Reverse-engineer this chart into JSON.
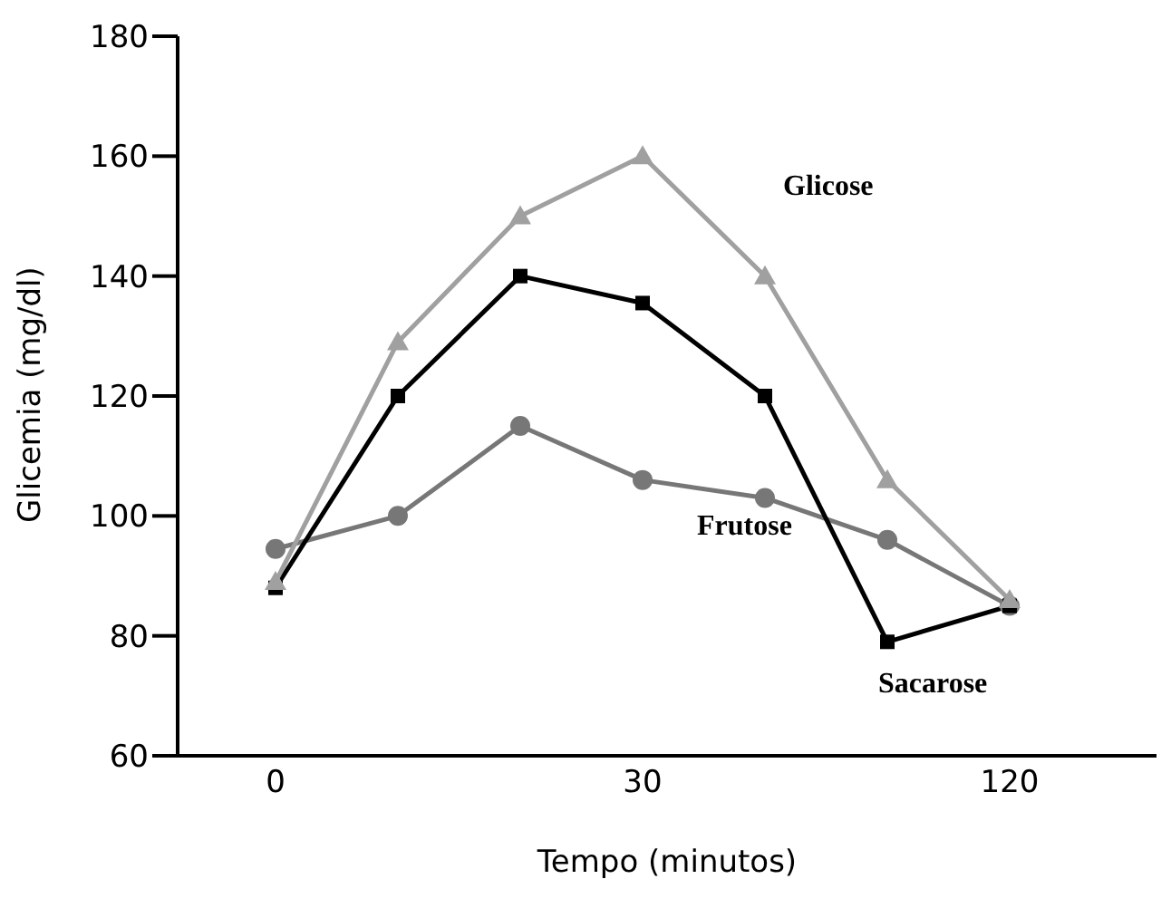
{
  "chart_data": {
    "type": "line",
    "xlabel": "Tempo (minutos)",
    "ylabel": "Glicemia (mg/dl)",
    "categories": [
      "0",
      null,
      null,
      "30",
      null,
      null,
      "120"
    ],
    "ylim": [
      60,
      180
    ],
    "yticks": [
      60,
      80,
      100,
      120,
      140,
      160,
      180
    ],
    "grid": false,
    "legend": false,
    "line_style": "solid",
    "series": [
      {
        "name": "Glicose",
        "color": "#a0a0a0",
        "marker": "triangle",
        "values": [
          89,
          129,
          150,
          160,
          140,
          106,
          86
        ]
      },
      {
        "name": "Sacarose",
        "color": "#000000",
        "marker": "square",
        "values": [
          88,
          120,
          140,
          135.5,
          120,
          79,
          85
        ]
      },
      {
        "name": "Frutose",
        "color": "#777777",
        "marker": "circle",
        "values": [
          94.5,
          100,
          115,
          106,
          103,
          96,
          85
        ]
      }
    ]
  }
}
